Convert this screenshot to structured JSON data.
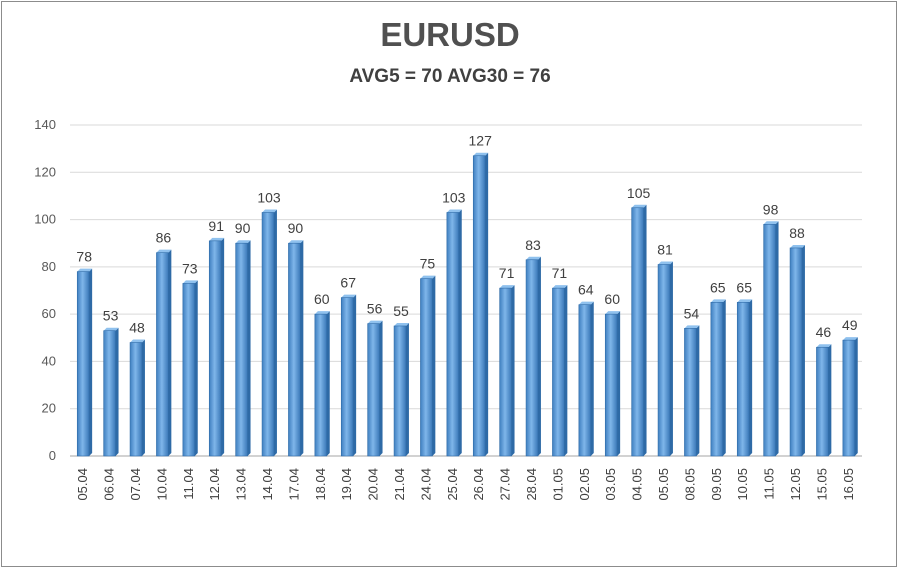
{
  "chart_data": {
    "type": "bar",
    "title": "EURUSD",
    "subtitle": "AVG5 = 70 AVG30 = 76",
    "xlabel": "",
    "ylabel": "",
    "ylim": [
      0,
      140
    ],
    "yticks": [
      0,
      20,
      40,
      60,
      80,
      100,
      120,
      140
    ],
    "grid": true,
    "legend": "none",
    "data_labels": true,
    "bar_color": "#5b9bd5",
    "categories": [
      "05.04",
      "06.04",
      "07.04",
      "10.04",
      "11.04",
      "12.04",
      "13.04",
      "14.04",
      "17.04",
      "18.04",
      "19.04",
      "20.04",
      "21.04",
      "24.04",
      "25.04",
      "26.04",
      "27.04",
      "28.04",
      "01.05",
      "02.05",
      "03.05",
      "04.05",
      "05.05",
      "08.05",
      "09.05",
      "10.05",
      "11.05",
      "12.05",
      "15.05",
      "16.05"
    ],
    "values": [
      78,
      53,
      48,
      86,
      73,
      91,
      90,
      103,
      90,
      60,
      67,
      56,
      55,
      75,
      103,
      127,
      71,
      83,
      71,
      64,
      60,
      105,
      81,
      54,
      65,
      65,
      98,
      88,
      46,
      49
    ]
  }
}
